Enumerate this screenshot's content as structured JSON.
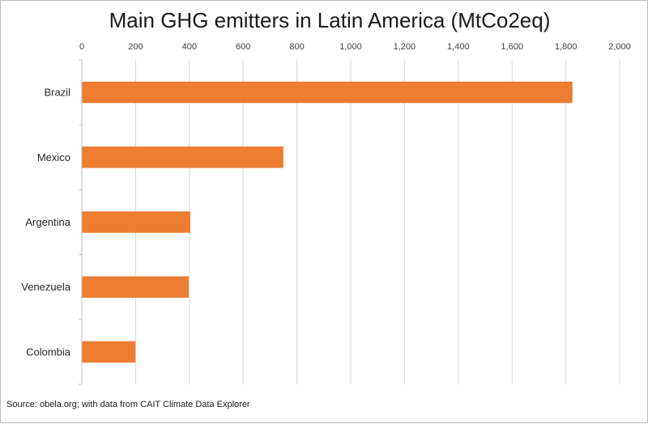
{
  "chart_data": {
    "type": "bar",
    "orientation": "horizontal",
    "title": "Main GHG emitters in Latin America (MtCo2eq)",
    "categories": [
      "Brazil",
      "Mexico",
      "Argentina",
      "Venezuela",
      "Colombia"
    ],
    "values": [
      1823,
      748,
      402,
      396,
      198
    ],
    "xlim": [
      0,
      2000
    ],
    "xticks": [
      0,
      200,
      400,
      600,
      800,
      1000,
      1200,
      1400,
      1600,
      1800,
      2000
    ],
    "xtick_labels": [
      "0",
      "200",
      "400",
      "600",
      "800",
      "1,000",
      "1,200",
      "1,400",
      "1,600",
      "1,800",
      "2,000"
    ],
    "x_axis_position": "top",
    "grid": "vertical",
    "legend": "none",
    "bar_color": "#ED7D31",
    "source": "Source: obela.org; with data from CAIT Climate Data Explorer"
  }
}
